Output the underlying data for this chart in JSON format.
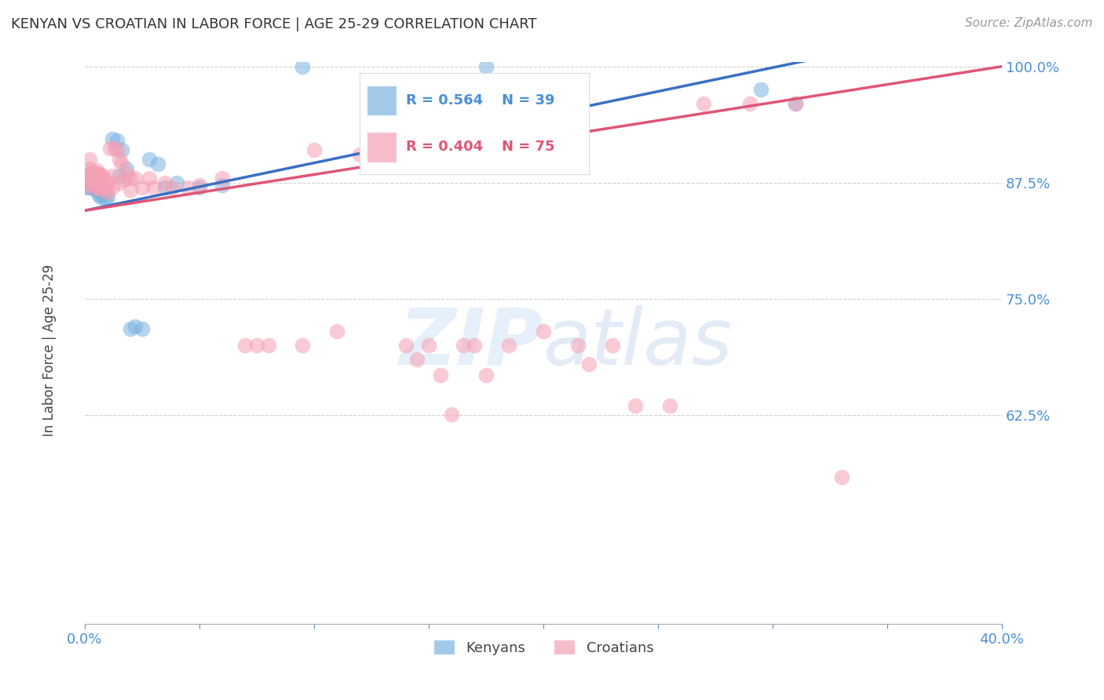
{
  "title": "KENYAN VS CROATIAN IN LABOR FORCE | AGE 25-29 CORRELATION CHART",
  "source": "Source: ZipAtlas.com",
  "ylabel": "In Labor Force | Age 25-29",
  "xlim": [
    0.0,
    0.4
  ],
  "ylim": [
    0.4,
    1.005
  ],
  "xticks": [
    0.0,
    0.05,
    0.1,
    0.15,
    0.2,
    0.25,
    0.3,
    0.35,
    0.4
  ],
  "yticks": [
    0.625,
    0.75,
    0.875,
    1.0
  ],
  "ytick_labels": [
    "62.5%",
    "75.0%",
    "87.5%",
    "100.0%"
  ],
  "blue_color": "#7ab3e0",
  "pink_color": "#f5a0b5",
  "blue_line_color": "#3a6fc4",
  "pink_line_color": "#e05575",
  "R_blue": 0.564,
  "N_blue": 39,
  "R_pink": 0.404,
  "N_pink": 75,
  "legend_label_blue": "Kenyans",
  "legend_label_pink": "Croatians",
  "watermark_zip": "ZIP",
  "watermark_atlas": "atlas",
  "blue_x": [
    0.001,
    0.001,
    0.001,
    0.002,
    0.002,
    0.002,
    0.003,
    0.003,
    0.003,
    0.004,
    0.004,
    0.005,
    0.005,
    0.006,
    0.006,
    0.007,
    0.008,
    0.009,
    0.01,
    0.012,
    0.014,
    0.015,
    0.016,
    0.018,
    0.02,
    0.022,
    0.025,
    0.028,
    0.032,
    0.035,
    0.04,
    0.05,
    0.06,
    0.095,
    0.155,
    0.165,
    0.175,
    0.295,
    0.31
  ],
  "blue_y": [
    0.88,
    0.876,
    0.87,
    0.884,
    0.878,
    0.87,
    0.882,
    0.876,
    0.87,
    0.878,
    0.87,
    0.872,
    0.866,
    0.868,
    0.862,
    0.86,
    0.862,
    0.858,
    0.86,
    0.922,
    0.92,
    0.882,
    0.91,
    0.89,
    0.718,
    0.72,
    0.718,
    0.9,
    0.895,
    0.87,
    0.875,
    0.87,
    0.872,
    1.0,
    0.92,
    0.92,
    1.0,
    0.975,
    0.96
  ],
  "pink_x": [
    0.001,
    0.001,
    0.001,
    0.002,
    0.002,
    0.002,
    0.002,
    0.003,
    0.003,
    0.004,
    0.004,
    0.004,
    0.005,
    0.005,
    0.005,
    0.006,
    0.006,
    0.006,
    0.007,
    0.007,
    0.007,
    0.008,
    0.008,
    0.009,
    0.009,
    0.01,
    0.01,
    0.011,
    0.012,
    0.012,
    0.013,
    0.014,
    0.015,
    0.015,
    0.016,
    0.017,
    0.018,
    0.02,
    0.02,
    0.022,
    0.025,
    0.028,
    0.03,
    0.035,
    0.038,
    0.045,
    0.05,
    0.06,
    0.07,
    0.075,
    0.08,
    0.095,
    0.1,
    0.11,
    0.12,
    0.13,
    0.14,
    0.145,
    0.15,
    0.155,
    0.16,
    0.165,
    0.17,
    0.175,
    0.185,
    0.2,
    0.215,
    0.22,
    0.23,
    0.24,
    0.255,
    0.27,
    0.29,
    0.31,
    0.33
  ],
  "pink_y": [
    0.884,
    0.878,
    0.872,
    0.9,
    0.89,
    0.882,
    0.875,
    0.886,
    0.878,
    0.886,
    0.88,
    0.87,
    0.888,
    0.88,
    0.872,
    0.885,
    0.876,
    0.87,
    0.882,
    0.875,
    0.868,
    0.882,
    0.872,
    0.878,
    0.868,
    0.875,
    0.865,
    0.912,
    0.882,
    0.87,
    0.912,
    0.91,
    0.9,
    0.875,
    0.895,
    0.878,
    0.885,
    0.88,
    0.867,
    0.88,
    0.87,
    0.88,
    0.87,
    0.875,
    0.87,
    0.87,
    0.872,
    0.88,
    0.7,
    0.7,
    0.7,
    0.7,
    0.91,
    0.715,
    0.905,
    0.908,
    0.7,
    0.685,
    0.7,
    0.668,
    0.626,
    0.7,
    0.7,
    0.668,
    0.7,
    0.715,
    0.7,
    0.68,
    0.7,
    0.635,
    0.635,
    0.96,
    0.96,
    0.96,
    0.558
  ]
}
